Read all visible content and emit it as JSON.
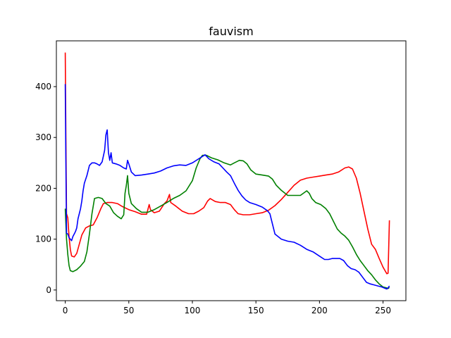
{
  "chart_data": {
    "type": "line",
    "title": "fauvism",
    "xlabel": "",
    "ylabel": "",
    "xlim": [
      -7,
      268
    ],
    "ylim": [
      -21,
      490
    ],
    "xticks": [
      0,
      50,
      100,
      150,
      200,
      250
    ],
    "yticks": [
      0,
      100,
      200,
      300,
      400
    ],
    "grid": false,
    "legend": "none",
    "series": [
      {
        "color": "#ff0000",
        "points": [
          [
            0,
            467
          ],
          [
            0.5,
            300
          ],
          [
            1,
            150
          ],
          [
            2,
            142
          ],
          [
            3,
            105
          ],
          [
            4,
            80
          ],
          [
            5,
            67
          ],
          [
            7,
            65
          ],
          [
            9,
            72
          ],
          [
            11,
            90
          ],
          [
            13,
            108
          ],
          [
            16,
            122
          ],
          [
            19,
            126
          ],
          [
            22,
            128
          ],
          [
            25,
            142
          ],
          [
            28,
            160
          ],
          [
            30,
            170
          ],
          [
            33,
            172
          ],
          [
            37,
            172
          ],
          [
            41,
            170
          ],
          [
            45,
            164
          ],
          [
            50,
            158
          ],
          [
            55,
            154
          ],
          [
            60,
            149
          ],
          [
            64,
            149
          ],
          [
            66,
            168
          ],
          [
            67,
            158
          ],
          [
            70,
            152
          ],
          [
            74,
            155
          ],
          [
            78,
            170
          ],
          [
            80,
            175
          ],
          [
            82,
            188
          ],
          [
            83,
            172
          ],
          [
            87,
            165
          ],
          [
            92,
            155
          ],
          [
            97,
            150
          ],
          [
            101,
            150
          ],
          [
            105,
            155
          ],
          [
            109,
            162
          ],
          [
            112,
            175
          ],
          [
            114,
            180
          ],
          [
            118,
            174
          ],
          [
            122,
            172
          ],
          [
            126,
            172
          ],
          [
            130,
            168
          ],
          [
            133,
            158
          ],
          [
            136,
            150
          ],
          [
            140,
            148
          ],
          [
            145,
            148
          ],
          [
            150,
            150
          ],
          [
            155,
            152
          ],
          [
            160,
            157
          ],
          [
            165,
            166
          ],
          [
            170,
            178
          ],
          [
            175,
            192
          ],
          [
            180,
            206
          ],
          [
            185,
            216
          ],
          [
            190,
            220
          ],
          [
            195,
            222
          ],
          [
            200,
            224
          ],
          [
            205,
            226
          ],
          [
            210,
            228
          ],
          [
            215,
            232
          ],
          [
            220,
            240
          ],
          [
            223,
            242
          ],
          [
            226,
            238
          ],
          [
            229,
            220
          ],
          [
            232,
            190
          ],
          [
            235,
            155
          ],
          [
            238,
            120
          ],
          [
            241,
            90
          ],
          [
            244,
            80
          ],
          [
            247,
            62
          ],
          [
            250,
            45
          ],
          [
            253,
            32
          ],
          [
            254,
            33
          ],
          [
            255,
            137
          ]
        ]
      },
      {
        "color": "#008000",
        "points": [
          [
            0,
            160
          ],
          [
            1,
            100
          ],
          [
            2,
            70
          ],
          [
            3,
            48
          ],
          [
            4,
            38
          ],
          [
            6,
            36
          ],
          [
            9,
            40
          ],
          [
            12,
            47
          ],
          [
            15,
            56
          ],
          [
            17,
            75
          ],
          [
            19,
            110
          ],
          [
            21,
            150
          ],
          [
            23,
            180
          ],
          [
            26,
            182
          ],
          [
            29,
            180
          ],
          [
            32,
            170
          ],
          [
            35,
            165
          ],
          [
            38,
            152
          ],
          [
            41,
            145
          ],
          [
            44,
            140
          ],
          [
            46,
            148
          ],
          [
            47,
            190
          ],
          [
            48,
            205
          ],
          [
            49,
            225
          ],
          [
            50,
            190
          ],
          [
            52,
            170
          ],
          [
            56,
            160
          ],
          [
            60,
            153
          ],
          [
            65,
            153
          ],
          [
            70,
            158
          ],
          [
            75,
            165
          ],
          [
            80,
            172
          ],
          [
            85,
            180
          ],
          [
            90,
            186
          ],
          [
            95,
            195
          ],
          [
            100,
            215
          ],
          [
            103,
            240
          ],
          [
            106,
            258
          ],
          [
            108,
            265
          ],
          [
            111,
            265
          ],
          [
            115,
            260
          ],
          [
            120,
            256
          ],
          [
            125,
            250
          ],
          [
            130,
            246
          ],
          [
            133,
            250
          ],
          [
            137,
            255
          ],
          [
            140,
            254
          ],
          [
            143,
            248
          ],
          [
            146,
            236
          ],
          [
            150,
            228
          ],
          [
            155,
            226
          ],
          [
            160,
            224
          ],
          [
            163,
            218
          ],
          [
            166,
            206
          ],
          [
            170,
            196
          ],
          [
            175,
            186
          ],
          [
            180,
            186
          ],
          [
            185,
            186
          ],
          [
            190,
            195
          ],
          [
            192,
            190
          ],
          [
            194,
            180
          ],
          [
            197,
            172
          ],
          [
            201,
            168
          ],
          [
            205,
            160
          ],
          [
            208,
            150
          ],
          [
            211,
            135
          ],
          [
            214,
            120
          ],
          [
            217,
            112
          ],
          [
            220,
            106
          ],
          [
            223,
            98
          ],
          [
            226,
            85
          ],
          [
            229,
            70
          ],
          [
            232,
            58
          ],
          [
            235,
            48
          ],
          [
            238,
            38
          ],
          [
            241,
            30
          ],
          [
            244,
            20
          ],
          [
            247,
            12
          ],
          [
            250,
            6
          ],
          [
            253,
            4
          ],
          [
            254,
            3
          ],
          [
            255,
            5
          ]
        ]
      },
      {
        "color": "#0000ff",
        "points": [
          [
            0,
            405
          ],
          [
            0.5,
            250
          ],
          [
            1,
            112
          ],
          [
            2,
            110
          ],
          [
            3,
            103
          ],
          [
            4,
            100
          ],
          [
            5,
            97
          ],
          [
            6,
            105
          ],
          [
            7,
            110
          ],
          [
            8,
            115
          ],
          [
            9,
            122
          ],
          [
            10,
            140
          ],
          [
            11,
            150
          ],
          [
            12,
            160
          ],
          [
            13,
            175
          ],
          [
            14,
            195
          ],
          [
            15,
            210
          ],
          [
            17,
            225
          ],
          [
            19,
            245
          ],
          [
            21,
            250
          ],
          [
            23,
            250
          ],
          [
            25,
            248
          ],
          [
            27,
            245
          ],
          [
            29,
            252
          ],
          [
            31,
            275
          ],
          [
            32,
            305
          ],
          [
            33,
            315
          ],
          [
            34,
            270
          ],
          [
            35,
            255
          ],
          [
            36,
            270
          ],
          [
            37,
            250
          ],
          [
            40,
            248
          ],
          [
            43,
            245
          ],
          [
            46,
            240
          ],
          [
            48,
            238
          ],
          [
            49,
            255
          ],
          [
            50,
            248
          ],
          [
            52,
            232
          ],
          [
            55,
            225
          ],
          [
            60,
            226
          ],
          [
            65,
            228
          ],
          [
            70,
            230
          ],
          [
            75,
            234
          ],
          [
            80,
            240
          ],
          [
            85,
            244
          ],
          [
            90,
            246
          ],
          [
            95,
            245
          ],
          [
            100,
            250
          ],
          [
            105,
            258
          ],
          [
            110,
            266
          ],
          [
            113,
            258
          ],
          [
            117,
            252
          ],
          [
            121,
            248
          ],
          [
            124,
            240
          ],
          [
            127,
            232
          ],
          [
            130,
            225
          ],
          [
            133,
            210
          ],
          [
            136,
            196
          ],
          [
            139,
            185
          ],
          [
            142,
            177
          ],
          [
            145,
            172
          ],
          [
            150,
            168
          ],
          [
            155,
            163
          ],
          [
            159,
            156
          ],
          [
            161,
            150
          ],
          [
            163,
            130
          ],
          [
            165,
            110
          ],
          [
            170,
            100
          ],
          [
            175,
            96
          ],
          [
            180,
            94
          ],
          [
            185,
            88
          ],
          [
            190,
            80
          ],
          [
            195,
            75
          ],
          [
            198,
            70
          ],
          [
            201,
            65
          ],
          [
            204,
            60
          ],
          [
            207,
            60
          ],
          [
            210,
            62
          ],
          [
            213,
            62
          ],
          [
            216,
            62
          ],
          [
            219,
            58
          ],
          [
            222,
            48
          ],
          [
            225,
            42
          ],
          [
            228,
            40
          ],
          [
            231,
            35
          ],
          [
            234,
            25
          ],
          [
            237,
            15
          ],
          [
            240,
            12
          ],
          [
            243,
            10
          ],
          [
            246,
            8
          ],
          [
            249,
            6
          ],
          [
            252,
            3
          ],
          [
            253,
            2
          ],
          [
            254,
            4
          ],
          [
            255,
            8
          ]
        ]
      }
    ]
  }
}
